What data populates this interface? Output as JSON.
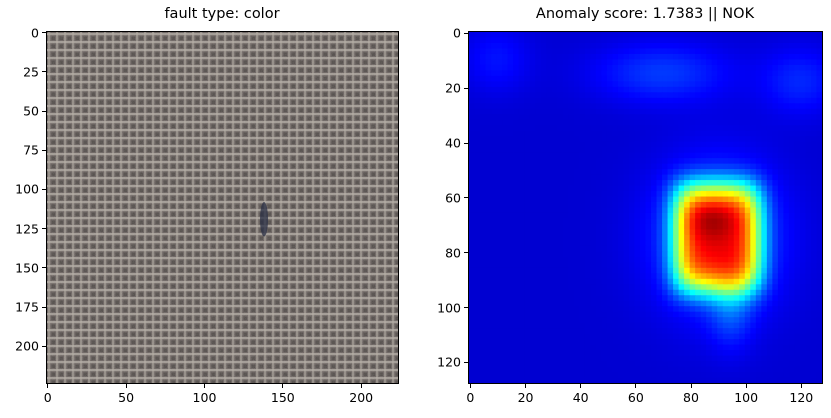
{
  "chart_data": [
    {
      "type": "image",
      "title": "fault type: color",
      "xlim": [
        -0.5,
        223.5
      ],
      "ylim": [
        223.5,
        -0.5
      ],
      "xticks": [
        0,
        50,
        100,
        150,
        200
      ],
      "yticks": [
        0,
        25,
        50,
        75,
        100,
        125,
        150,
        175,
        200
      ],
      "content": "woven fabric texture, gray-brown",
      "defect": {
        "x": 138,
        "y_start": 108,
        "y_end": 130,
        "color": "#2a2f44"
      },
      "colors": {
        "base": "#6b6360",
        "thread_light": "#b5aea6",
        "thread_dark": "#4a4442"
      }
    },
    {
      "type": "heatmap",
      "title": "Anomaly score: 1.7383 || NOK",
      "xlim": [
        -0.5,
        127.5
      ],
      "ylim": [
        127.5,
        -0.5
      ],
      "xticks": [
        0,
        20,
        40,
        60,
        80,
        100,
        120
      ],
      "yticks": [
        0,
        20,
        40,
        60,
        80,
        100,
        120
      ],
      "colormap": "jet",
      "hotspot": {
        "x": 90,
        "y": 75
      },
      "colors": {
        "background": "#00008e",
        "hot": "#ffff00"
      }
    }
  ]
}
